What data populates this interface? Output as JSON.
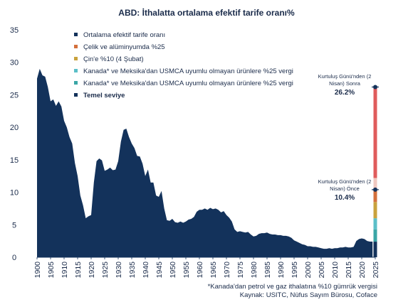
{
  "chart_data": {
    "type": "area",
    "title": "ABD: İthalatta ortalama efektif tarife oranı%",
    "ylim": [
      0,
      35
    ],
    "yticks": [
      0,
      5,
      10,
      15,
      20,
      25,
      30,
      35
    ],
    "xlim": [
      1900,
      2025
    ],
    "xticks": [
      1900,
      1905,
      1910,
      1915,
      1920,
      1925,
      1930,
      1935,
      1940,
      1945,
      1950,
      1955,
      1960,
      1965,
      1970,
      1975,
      1980,
      1985,
      1990,
      1995,
      2000,
      2005,
      2010,
      2015,
      2020,
      2025
    ],
    "series": [
      {
        "name": "Ortalama efektif tarife oranı",
        "color": "#13325b",
        "x": [
          1900,
          1901,
          1902,
          1903,
          1904,
          1905,
          1906,
          1907,
          1908,
          1909,
          1910,
          1911,
          1912,
          1913,
          1914,
          1915,
          1916,
          1917,
          1918,
          1919,
          1920,
          1921,
          1922,
          1923,
          1924,
          1925,
          1926,
          1927,
          1928,
          1929,
          1930,
          1931,
          1932,
          1933,
          1934,
          1935,
          1936,
          1937,
          1938,
          1939,
          1940,
          1941,
          1942,
          1943,
          1944,
          1945,
          1946,
          1947,
          1948,
          1949,
          1950,
          1951,
          1952,
          1953,
          1954,
          1955,
          1956,
          1957,
          1958,
          1959,
          1960,
          1961,
          1962,
          1963,
          1964,
          1965,
          1966,
          1967,
          1968,
          1969,
          1970,
          1971,
          1972,
          1973,
          1974,
          1975,
          1976,
          1977,
          1978,
          1979,
          1980,
          1981,
          1982,
          1983,
          1984,
          1985,
          1986,
          1987,
          1988,
          1989,
          1990,
          1991,
          1992,
          1993,
          1994,
          1995,
          1996,
          1997,
          1998,
          1999,
          2000,
          2001,
          2002,
          2003,
          2004,
          2005,
          2006,
          2007,
          2008,
          2009,
          2010,
          2011,
          2012,
          2013,
          2014,
          2015,
          2016,
          2017,
          2018,
          2019,
          2020,
          2021,
          2022,
          2023,
          2024
        ],
        "values": [
          27.5,
          29.0,
          28.0,
          27.8,
          26.2,
          24.0,
          24.3,
          23.3,
          24.0,
          23.2,
          21.0,
          20.0,
          18.5,
          17.5,
          14.5,
          12.5,
          9.5,
          8.0,
          6.0,
          6.3,
          6.5,
          11.5,
          14.8,
          15.2,
          14.9,
          13.3,
          13.5,
          13.8,
          13.4,
          13.5,
          14.8,
          17.8,
          19.6,
          19.8,
          18.5,
          17.5,
          16.8,
          15.6,
          15.5,
          14.4,
          12.5,
          13.5,
          11.5,
          11.5,
          9.5,
          9.3,
          10.2,
          7.5,
          5.7,
          5.6,
          5.9,
          5.4,
          5.3,
          5.5,
          5.3,
          5.5,
          5.8,
          5.9,
          6.2,
          7.0,
          7.3,
          7.3,
          7.5,
          7.3,
          7.6,
          7.4,
          7.5,
          7.3,
          6.9,
          7.1,
          6.5,
          6.1,
          5.5,
          4.3,
          3.9,
          4.0,
          3.9,
          3.8,
          3.9,
          3.5,
          3.2,
          3.3,
          3.6,
          3.7,
          3.7,
          3.8,
          3.6,
          3.5,
          3.5,
          3.4,
          3.4,
          3.3,
          3.3,
          3.2,
          3.0,
          2.6,
          2.4,
          2.2,
          2.0,
          1.9,
          1.7,
          1.7,
          1.6,
          1.6,
          1.5,
          1.4,
          1.3,
          1.3,
          1.4,
          1.3,
          1.4,
          1.4,
          1.5,
          1.5,
          1.6,
          1.5,
          1.5,
          1.6,
          2.5,
          2.8,
          2.9,
          2.8,
          2.5,
          2.4,
          2.4
        ]
      }
    ],
    "stacked_2025": {
      "x": 2025,
      "segments": [
        {
          "name": "Temel seviye",
          "color": "#13325b",
          "from": 0,
          "to": 2.4
        },
        {
          "name": "Kanada* ve Meksika'dan USMCA uyumlu olmayan ürünlere %25 vergi",
          "color": "#3aa6a6",
          "from": 2.4,
          "to": 4.3
        },
        {
          "name": "Kanada* ve Meksika'dan USMCA uyumlu olmayan ürünlere %25 vergi",
          "color": "#5bbfc8",
          "from": 4.3,
          "to": 6.0
        },
        {
          "name": "Çin'e %10 (4 Şubat)",
          "color": "#c9a23d",
          "from": 6.0,
          "to": 8.5
        },
        {
          "name": "Çelik ve alüminyumda %25",
          "color": "#d4703c",
          "from": 8.5,
          "to": 10.4
        },
        {
          "name": "Kurtuluş Günü sonrası",
          "color": "#f0c8c0",
          "from": 10.4,
          "to": 12.2
        },
        {
          "name": "Kurtuluş Günü sonrası",
          "color": "#e05c5c",
          "from": 12.2,
          "to": 26.2
        }
      ],
      "markers": [
        10.4,
        26.2
      ]
    },
    "legend": [
      {
        "label": "Ortalama efektif tarife oranı",
        "color": "#13325b",
        "bold": false
      },
      {
        "label": "Çelik ve alüminyumda %25",
        "color": "#d4703c",
        "bold": false
      },
      {
        "label": "Çin'e %10 (4 Şubat)",
        "color": "#c9a23d",
        "bold": false
      },
      {
        "label": "Kanada* ve Meksika'dan USMCA uyumlu olmayan ürünlere %25 vergi",
        "color": "#5bbfc8",
        "bold": false
      },
      {
        "label": "Kanada* ve Meksika'dan USMCA uyumlu olmayan ürünlere %25 vergi",
        "color": "#3aa6a6",
        "bold": false
      },
      {
        "label": "Temel seviye",
        "color": "#13325b",
        "bold": true
      }
    ],
    "annotations": [
      {
        "line1": "Kurtuluş Günü'nden (2",
        "line2": "Nisan) Sonra",
        "value": "26.2%"
      },
      {
        "line1": "Kurtuluş Günü'nden (2",
        "line2": "Nisan) Önce",
        "value": "10.4%"
      }
    ],
    "footnote": "*Kanada'dan petrol ve gaz ithalatına %10 gümrük vergisi",
    "source": "Kaynak: USITC, Nüfus Sayım Bürosu, Coface"
  }
}
